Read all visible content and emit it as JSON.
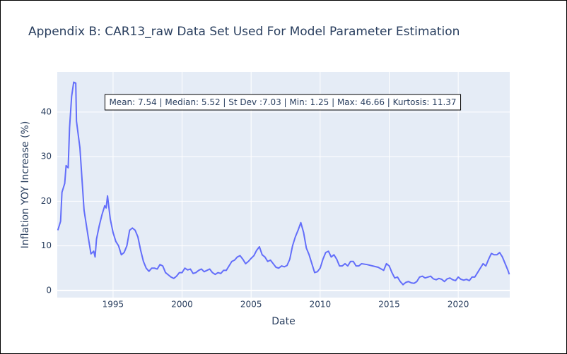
{
  "chart_data": {
    "type": "line",
    "title": "Appendix B: CAR13_raw Data Set Used For Model Parameter Estimation",
    "x_label": "Date",
    "y_label": "Inflation YOY Increase (%)",
    "annotation": "Mean: 7.54 | Median: 5.52 | St Dev :7.03 | Min: 1.25 | Max: 46.66 | Kurtosis: 11.37",
    "color": "#636efa",
    "grid": true,
    "xlim": [
      1990.96,
      2023.73
    ],
    "ylim": [
      -1.6,
      49
    ],
    "xticks": [
      1995,
      2000,
      2005,
      2010,
      2015,
      2020
    ],
    "yticks": [
      0,
      10,
      20,
      30,
      40
    ],
    "x": [
      1991.0,
      1991.2,
      1991.3,
      1991.5,
      1991.6,
      1991.75,
      1991.85,
      1992.0,
      1992.15,
      1992.3,
      1992.35,
      1992.6,
      1992.9,
      1993.2,
      1993.4,
      1993.6,
      1993.7,
      1993.8,
      1994.0,
      1994.2,
      1994.4,
      1994.5,
      1994.6,
      1994.8,
      1995.0,
      1995.2,
      1995.4,
      1995.6,
      1995.8,
      1996.0,
      1996.2,
      1996.4,
      1996.6,
      1996.8,
      1997.0,
      1997.2,
      1997.4,
      1997.6,
      1997.8,
      1998.0,
      1998.2,
      1998.4,
      1998.6,
      1998.8,
      1999.0,
      1999.2,
      1999.4,
      1999.6,
      1999.8,
      2000.0,
      2000.2,
      2000.4,
      2000.6,
      2000.8,
      2001.0,
      2001.2,
      2001.4,
      2001.6,
      2001.8,
      2002.0,
      2002.2,
      2002.4,
      2002.6,
      2002.8,
      2003.0,
      2003.2,
      2003.4,
      2003.6,
      2003.8,
      2004.0,
      2004.2,
      2004.4,
      2004.6,
      2004.8,
      2005.0,
      2005.2,
      2005.4,
      2005.6,
      2005.8,
      2006.0,
      2006.2,
      2006.4,
      2006.6,
      2006.8,
      2007.0,
      2007.2,
      2007.4,
      2007.6,
      2007.8,
      2008.0,
      2008.2,
      2008.4,
      2008.6,
      2008.8,
      2009.0,
      2009.2,
      2009.4,
      2009.6,
      2009.8,
      2010.0,
      2010.2,
      2010.4,
      2010.6,
      2010.8,
      2011.0,
      2011.2,
      2011.4,
      2011.6,
      2011.8,
      2012.0,
      2012.2,
      2012.4,
      2012.6,
      2012.8,
      2013.0,
      2013.4,
      2013.8,
      2014.2,
      2014.6,
      2014.8,
      2015.0,
      2015.2,
      2015.4,
      2015.6,
      2015.8,
      2016.0,
      2016.2,
      2016.4,
      2016.6,
      2016.8,
      2017.0,
      2017.2,
      2017.4,
      2017.6,
      2017.8,
      2018.0,
      2018.2,
      2018.4,
      2018.6,
      2018.8,
      2019.0,
      2019.2,
      2019.4,
      2019.6,
      2019.8,
      2020.0,
      2020.2,
      2020.4,
      2020.6,
      2020.8,
      2021.0,
      2021.2,
      2021.4,
      2021.6,
      2021.8,
      2022.0,
      2022.2,
      2022.4,
      2022.6,
      2022.8,
      2023.0,
      2023.2,
      2023.4,
      2023.6,
      2023.7
    ],
    "values": [
      13.5,
      15.5,
      22,
      24,
      28,
      27.5,
      36.5,
      43.5,
      46.7,
      46.5,
      38,
      32,
      18,
      12,
      8.2,
      8.8,
      7.5,
      11.5,
      14.5,
      17,
      19,
      18.5,
      21.2,
      16,
      13,
      11,
      10,
      8,
      8.5,
      10,
      13.5,
      14,
      13.5,
      12,
      9,
      6.5,
      5,
      4.3,
      5,
      5,
      4.8,
      5.8,
      5.5,
      4,
      3.5,
      3,
      2.7,
      3.2,
      4,
      4,
      5,
      4.6,
      4.8,
      3.8,
      4,
      4.5,
      4.8,
      4.2,
      4.5,
      4.8,
      4,
      3.6,
      4,
      3.8,
      4.5,
      4.5,
      5.5,
      6.5,
      6.8,
      7.5,
      7.8,
      7,
      6,
      6.5,
      7.2,
      7.8,
      9,
      9.8,
      8,
      7.5,
      6.5,
      6.8,
      6,
      5.2,
      5,
      5.5,
      5.3,
      5.6,
      7,
      10,
      12,
      13.5,
      15.2,
      13,
      9.5,
      8,
      6,
      4,
      4.2,
      5,
      7,
      8.5,
      8.8,
      7.5,
      8,
      7,
      5.5,
      5.5,
      6,
      5.5,
      6.5,
      6.5,
      5.5,
      5.5,
      6,
      5.8,
      5.5,
      5.2,
      4.5,
      6,
      5.5,
      4,
      2.8,
      3,
      2,
      1.3,
      1.8,
      2,
      1.7,
      1.6,
      2,
      3,
      3.2,
      2.8,
      3,
      3.2,
      2.6,
      2.4,
      2.7,
      2.5,
      2,
      2.6,
      2.8,
      2.4,
      2.2,
      3,
      2.5,
      2.3,
      2.5,
      2.2,
      3,
      3,
      4,
      5,
      6,
      5.5,
      7,
      8.3,
      8,
      8,
      8.5,
      7.5,
      6,
      4.5,
      3.6
    ]
  }
}
